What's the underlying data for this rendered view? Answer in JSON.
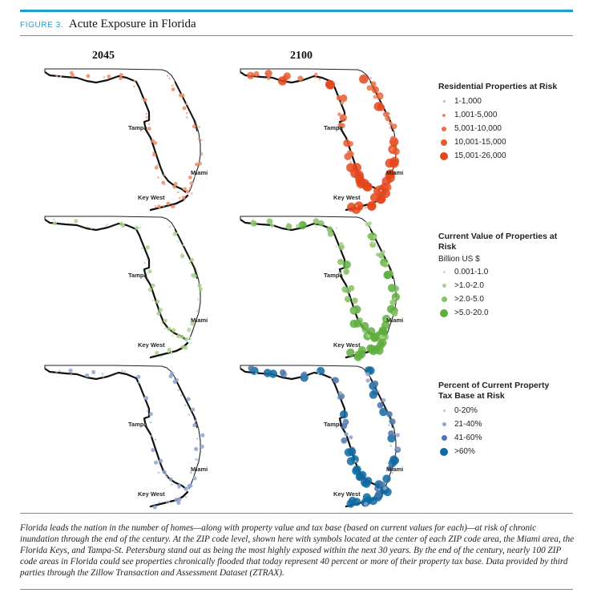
{
  "figure": {
    "label": "FIGURE 3.",
    "title": "Acute Exposure in Florida",
    "columns": [
      "2045",
      "2100"
    ]
  },
  "city_labels": {
    "tampa": "Tampa",
    "miami": "Miami",
    "key_west": "Key West"
  },
  "legends": [
    {
      "title": "Residential Properties at Risk",
      "subtitle": "",
      "items": [
        {
          "label": "1-1,000",
          "color": "#f2a98a"
        },
        {
          "label": "1,001-5,000",
          "color": "#ee8b66"
        },
        {
          "label": "5,001-10,000",
          "color": "#ea7048"
        },
        {
          "label": "10,001-15,000",
          "color": "#e85a30"
        },
        {
          "label": "15,001-26,000",
          "color": "#e4461c"
        }
      ]
    },
    {
      "title": "Current Value of Properties at Risk",
      "subtitle": "Billion US $",
      "items": [
        {
          "label": "0.001-1.0",
          "color": "#c9e2b0"
        },
        {
          "label": ">1.0-2.0",
          "color": "#a9d28a"
        },
        {
          "label": ">2.0-5.0",
          "color": "#88c266"
        },
        {
          "label": ">5.0-20.0",
          "color": "#5fae3e"
        }
      ]
    },
    {
      "title": "Percent of Current Property Tax Base at Risk",
      "subtitle": "",
      "items": [
        {
          "label": "0-20%",
          "color": "#b6c3dd"
        },
        {
          "label": "21-40%",
          "color": "#8fa4cc"
        },
        {
          "label": "41-60%",
          "color": "#4e76ac"
        },
        {
          "label": ">60%",
          "color": "#0f6aa1"
        }
      ]
    }
  ],
  "chart_data": {
    "type": "scatter",
    "map_region": "Florida",
    "columns": [
      "2045",
      "2100"
    ],
    "panels": [
      {
        "metric": "Residential Properties at Risk",
        "year": "2045",
        "level": "low-to-moderate, concentrated along coasts"
      },
      {
        "metric": "Residential Properties at Risk",
        "year": "2100",
        "level": "high, largest symbols near Miami, Key West and Tampa Bay"
      },
      {
        "metric": "Current Value of Properties at Risk",
        "year": "2045",
        "level": "mostly 0.001-1.0 and >1.0-2.0"
      },
      {
        "metric": "Current Value of Properties at Risk",
        "year": "2100",
        "level": "up to >5.0-20.0 along both coasts"
      },
      {
        "metric": "Percent of Current Property Tax Base at Risk",
        "year": "2045",
        "level": "mostly 0-20% and 21-40%"
      },
      {
        "metric": "Percent of Current Property Tax Base at Risk",
        "year": "2100",
        "level": "many >60% in Keys, Miami and southwest coast"
      }
    ]
  },
  "caption": "Florida leads the nation in the number of homes—along with property value and tax base (based on current values for each)—at risk of chronic inundation through the end of the century. At the ZIP code level, shown here with symbols located at the center of each ZIP code area, the Miami area, the Florida Keys, and Tampa-St. Petersburg stand out as being the most highly exposed within the next 30 years. By the end of the century, nearly 100 ZIP code areas in Florida could see properties chronically flooded that today represent 40 percent or more of their property tax base. Data provided by third parties through the Zillow Transaction and Assessment Dataset (ZTRAX)."
}
